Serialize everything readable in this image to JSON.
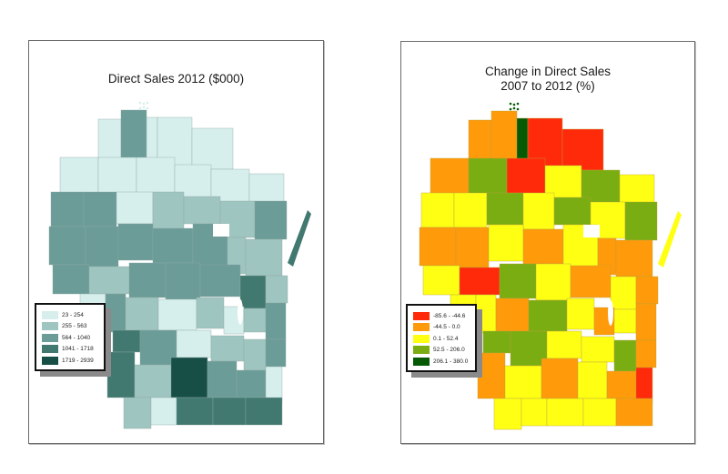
{
  "maps": [
    {
      "id": "direct-sales-2012",
      "title": "Direct Sales 2012 ($000)",
      "legend": [
        {
          "label": "23 - 254",
          "color": "#d6efec"
        },
        {
          "label": "255 - 563",
          "color": "#9fc5c0"
        },
        {
          "label": "564 - 1040",
          "color": "#6b9c97"
        },
        {
          "label": "1041 - 1718",
          "color": "#41786f"
        },
        {
          "label": "1719 - 2939",
          "color": "#174f47"
        }
      ]
    },
    {
      "id": "change-direct-sales-2007-2012",
      "title_line1": "Change in Direct Sales",
      "title_line2": "2007 to 2012 (%)",
      "legend": [
        {
          "label": "-85.6 - -44.6",
          "color": "#ff2a0a"
        },
        {
          "label": "-44.5 - 0.0",
          "color": "#ff9a0a"
        },
        {
          "label": "0.1 - 52.4",
          "color": "#ffff14"
        },
        {
          "label": "52.5 - 206.0",
          "color": "#7aad12"
        },
        {
          "label": "206.1 - 380.0",
          "color": "#065a06"
        }
      ]
    }
  ],
  "chart_data": [
    {
      "type": "choropleth",
      "title": "Direct Sales 2012 ($000)",
      "region": "Wisconsin counties",
      "legend_position": "lower-left",
      "classes": [
        "23 - 254",
        "255 - 563",
        "564 - 1040",
        "1041 - 1718",
        "1719 - 2939"
      ],
      "class_colors": [
        "#d6efec",
        "#9fc5c0",
        "#6b9c97",
        "#41786f",
        "#174f47"
      ],
      "no_data_color": "#ffffff"
    },
    {
      "type": "choropleth",
      "title": "Change in Direct Sales 2007 to 2012 (%)",
      "region": "Wisconsin counties",
      "legend_position": "lower-left",
      "classes": [
        "-85.6 - -44.6",
        "-44.5 - 0.0",
        "0.1 - 52.4",
        "52.5 - 206.0",
        "206.1 - 380.0"
      ],
      "class_colors": [
        "#ff2a0a",
        "#ff9a0a",
        "#ffff14",
        "#7aad12",
        "#065a06"
      ],
      "no_data_color": "#ffffff"
    }
  ]
}
